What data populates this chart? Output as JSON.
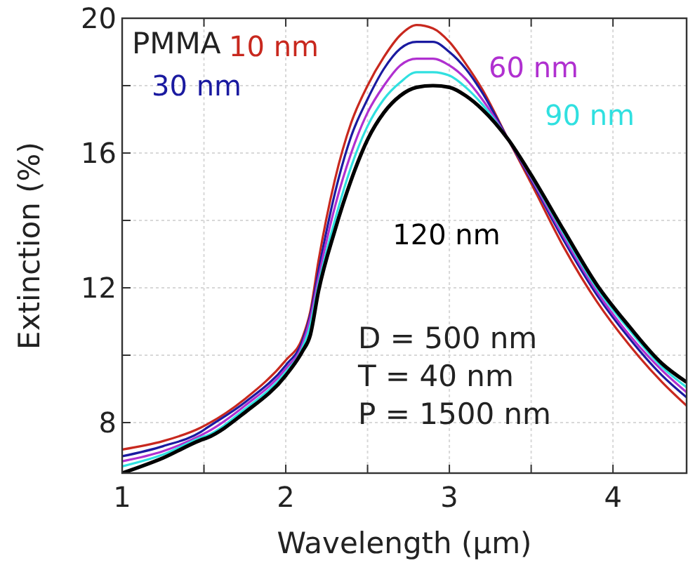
{
  "chart_data": {
    "type": "line",
    "xlabel": "Wavelength (μm)",
    "ylabel": "Extinction (%)",
    "x": [
      1,
      1.25,
      1.48,
      1.52,
      1.75,
      2,
      2.1,
      2.15,
      2.2,
      2.3,
      2.4,
      2.5,
      2.6,
      2.7,
      2.8,
      2.9,
      3,
      3.1,
      3.2,
      3.36,
      3.5,
      3.7,
      3.9,
      4.1,
      4.3,
      4.45
    ],
    "series": [
      {
        "name": "10 nm",
        "color": "#c8281e",
        "values": [
          7.2,
          7.45,
          7.85,
          7.95,
          8.7,
          9.85,
          10.5,
          11.3,
          12.8,
          15.2,
          16.9,
          18.0,
          18.85,
          19.5,
          19.8,
          19.7,
          19.3,
          18.65,
          17.9,
          16.4,
          15.1,
          13.2,
          11.6,
          10.3,
          9.2,
          8.5
        ]
      },
      {
        "name": "30 nm",
        "color": "#1a1aa0",
        "values": [
          7.0,
          7.3,
          7.72,
          7.85,
          8.6,
          9.7,
          10.4,
          11.2,
          12.5,
          14.8,
          16.5,
          17.6,
          18.5,
          19.1,
          19.3,
          19.3,
          19.0,
          18.5,
          17.8,
          16.4,
          15.2,
          13.4,
          11.8,
          10.5,
          9.4,
          8.75
        ]
      },
      {
        "name": "60 nm",
        "color": "#b030d0",
        "values": [
          6.85,
          7.15,
          7.62,
          7.72,
          8.5,
          9.6,
          10.3,
          11.1,
          12.3,
          14.4,
          16.0,
          17.2,
          18.0,
          18.6,
          18.8,
          18.8,
          18.6,
          18.2,
          17.6,
          16.4,
          15.25,
          13.5,
          11.9,
          10.6,
          9.55,
          8.9
        ]
      },
      {
        "name": "90 nm",
        "color": "#30e0e0",
        "values": [
          6.7,
          7.05,
          7.55,
          7.62,
          8.4,
          9.5,
          10.2,
          10.9,
          12.1,
          14.0,
          15.6,
          16.8,
          17.6,
          18.1,
          18.4,
          18.4,
          18.3,
          17.95,
          17.45,
          16.4,
          15.3,
          13.6,
          12.0,
          10.75,
          9.65,
          9.05
        ]
      },
      {
        "name": "120 nm",
        "color": "#000000",
        "values": [
          6.5,
          6.95,
          7.48,
          7.55,
          8.3,
          9.4,
          10.1,
          10.6,
          11.9,
          13.7,
          15.2,
          16.4,
          17.2,
          17.7,
          17.95,
          18.0,
          17.95,
          17.7,
          17.3,
          16.4,
          15.35,
          13.7,
          12.1,
          10.85,
          9.75,
          9.2
        ]
      }
    ],
    "xlim": [
      1,
      4.45
    ],
    "ylim": [
      6.5,
      20
    ],
    "xticks": [
      1,
      {
        "value": 1.5,
        "label": null
      },
      2,
      {
        "value": 2.5,
        "label": null
      },
      3,
      {
        "value": 3.5,
        "label": null
      },
      4
    ],
    "yticks": [
      8,
      {
        "value": 10,
        "label": null
      },
      12,
      {
        "value": 14,
        "label": null
      },
      16,
      {
        "value": 18,
        "label": null
      },
      20
    ],
    "grid": true,
    "legend": false,
    "line_style": "solid",
    "annotations": [
      "PMMA",
      "D = 500 nm",
      "T = 40 nm",
      "P = 1500 nm"
    ]
  }
}
